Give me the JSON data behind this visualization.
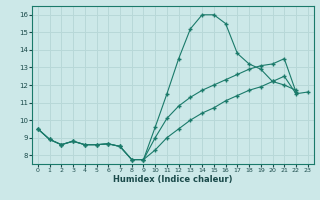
{
  "xlabel": "Humidex (Indice chaleur)",
  "bg_color": "#cce8e8",
  "grid_color": "#b8d8d8",
  "line_color": "#1a7a6a",
  "xlim": [
    -0.5,
    23.5
  ],
  "ylim": [
    7.5,
    16.5
  ],
  "xticks": [
    0,
    1,
    2,
    3,
    4,
    5,
    6,
    7,
    8,
    9,
    10,
    11,
    12,
    13,
    14,
    15,
    16,
    17,
    18,
    19,
    20,
    21,
    22,
    23
  ],
  "yticks": [
    8,
    9,
    10,
    11,
    12,
    13,
    14,
    15,
    16
  ],
  "line1_x": [
    0,
    1,
    2,
    3,
    4,
    5,
    6,
    7,
    8,
    9,
    10,
    11,
    12,
    13,
    14,
    15,
    16,
    17,
    18,
    19,
    20,
    21,
    22
  ],
  "line1_y": [
    9.5,
    8.9,
    8.6,
    8.8,
    8.6,
    8.6,
    8.65,
    8.5,
    7.75,
    7.75,
    9.6,
    11.5,
    13.5,
    15.2,
    16.0,
    16.0,
    15.5,
    13.8,
    13.2,
    12.9,
    12.2,
    12.0,
    11.7
  ],
  "line2_x": [
    0,
    1,
    2,
    3,
    4,
    5,
    6,
    7,
    8,
    9,
    10,
    11,
    12,
    13,
    14,
    15,
    16,
    17,
    18,
    19,
    20,
    21,
    22
  ],
  "line2_y": [
    9.5,
    8.9,
    8.6,
    8.8,
    8.6,
    8.6,
    8.65,
    8.5,
    7.75,
    7.75,
    9.0,
    10.1,
    10.8,
    11.3,
    11.7,
    12.0,
    12.3,
    12.6,
    12.9,
    13.1,
    13.2,
    13.5,
    11.6
  ],
  "line3_x": [
    0,
    1,
    2,
    3,
    4,
    5,
    6,
    7,
    8,
    9,
    10,
    11,
    12,
    13,
    14,
    15,
    16,
    17,
    18,
    19,
    20,
    21,
    22,
    23
  ],
  "line3_y": [
    9.5,
    8.9,
    8.6,
    8.8,
    8.6,
    8.6,
    8.65,
    8.5,
    7.75,
    7.75,
    8.3,
    9.0,
    9.5,
    10.0,
    10.4,
    10.7,
    11.1,
    11.4,
    11.7,
    11.9,
    12.2,
    12.5,
    11.5,
    11.6
  ]
}
